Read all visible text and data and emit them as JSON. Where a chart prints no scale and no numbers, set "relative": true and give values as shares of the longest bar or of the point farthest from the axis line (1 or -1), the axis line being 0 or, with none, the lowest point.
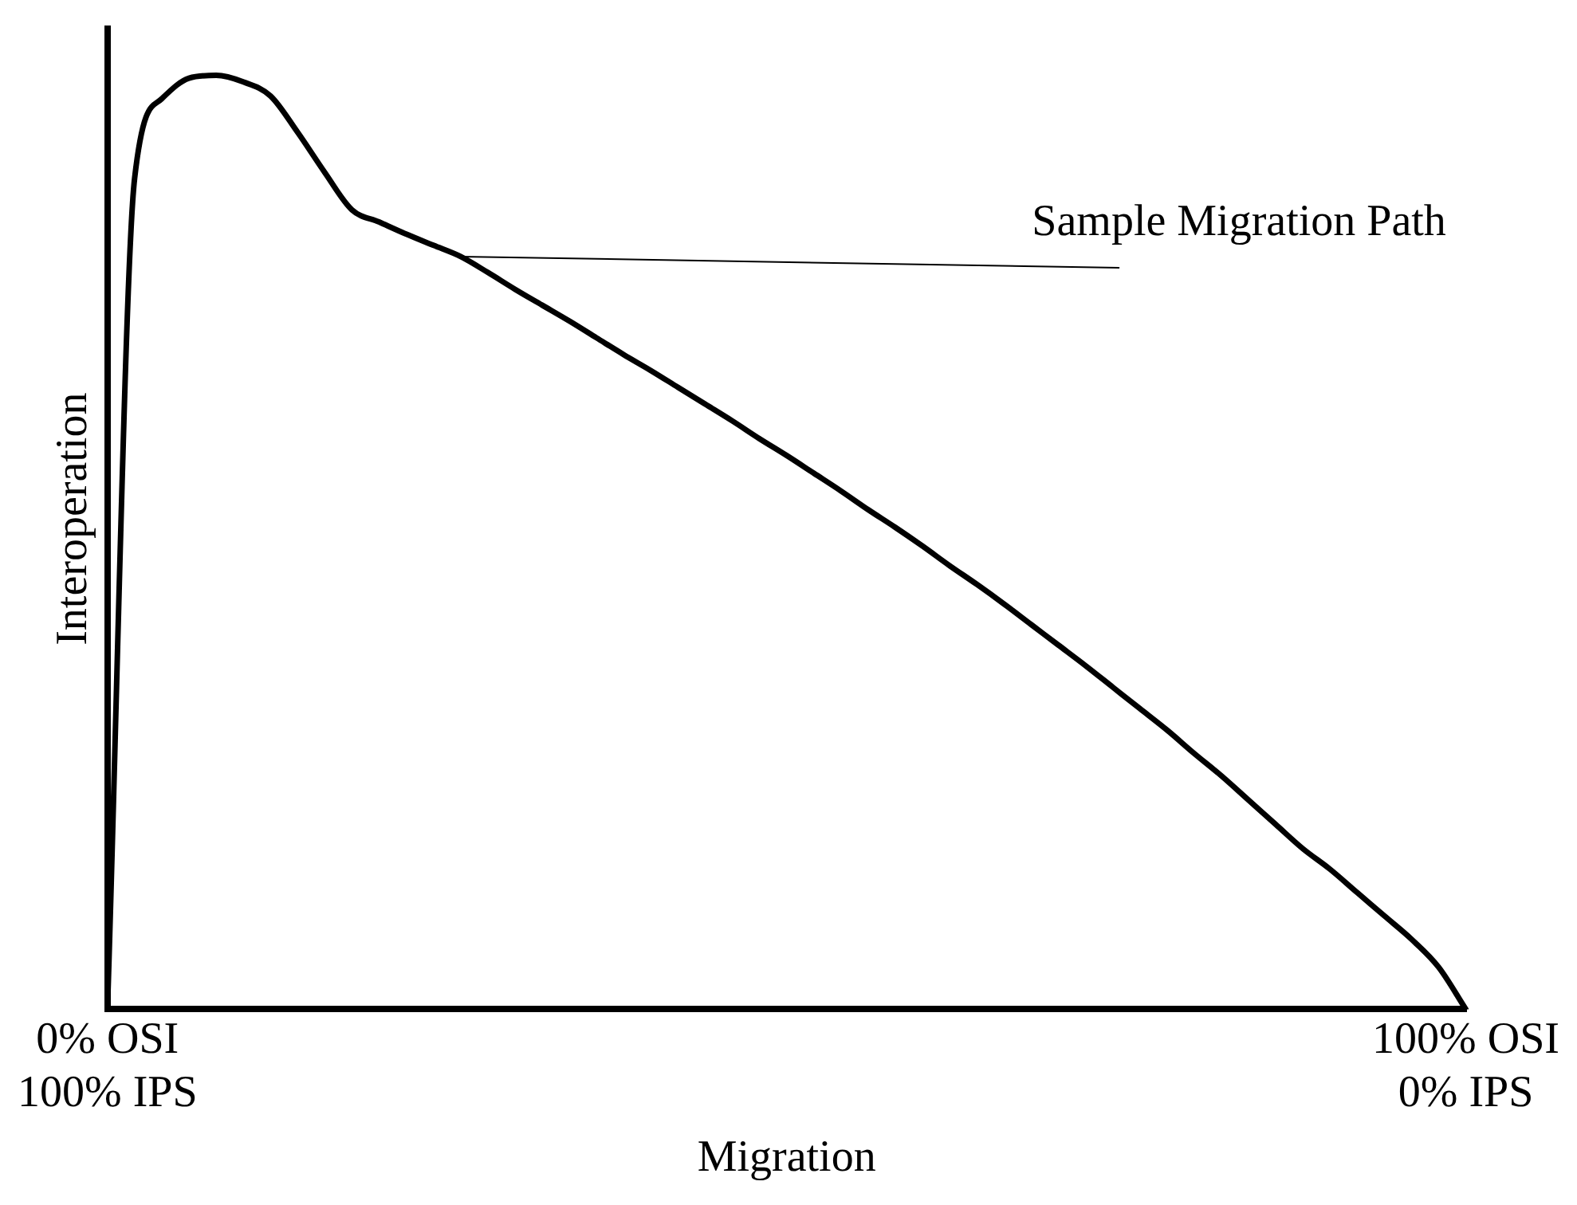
{
  "chart_data": {
    "type": "line",
    "xlabel": "Migration",
    "ylabel": "Interoperation",
    "relative": true,
    "categories": [
      "0% OSI\n100% IPS",
      null,
      null,
      null,
      null,
      null,
      null,
      null,
      null,
      null,
      null,
      null,
      null,
      null,
      null,
      null,
      null,
      null,
      null,
      null,
      null,
      null,
      null,
      null,
      null,
      null,
      null,
      null,
      null,
      null,
      null,
      null,
      null,
      null,
      null,
      null,
      null,
      null,
      null,
      null,
      null,
      null,
      null,
      null,
      null,
      null,
      null,
      null,
      null,
      null,
      "100% OSI\n0% IPS"
    ],
    "series": [
      {
        "color": "#000000",
        "values": [
          0,
          0.89,
          0.975,
          0.997,
          1,
          0.993,
          0.978,
          0.939,
          0.896,
          0.856,
          0.843,
          0.83,
          0.818,
          0.806,
          0.789,
          0.771,
          0.754,
          0.737,
          0.719,
          0.701,
          0.684,
          0.666,
          0.648,
          0.63,
          0.611,
          0.593,
          0.574,
          0.555,
          0.535,
          0.516,
          0.496,
          0.475,
          0.455,
          0.434,
          0.412,
          0.39,
          0.368,
          0.345,
          0.322,
          0.299,
          0.274,
          0.25,
          0.224,
          0.198,
          0.172,
          0.15,
          0.125,
          0.1,
          0.075,
          0.045,
          0
        ]
      }
    ],
    "annotations": [
      "Sample Migration Path"
    ],
    "grid": false,
    "legend": false,
    "marker": "none",
    "line_style": "solid"
  }
}
